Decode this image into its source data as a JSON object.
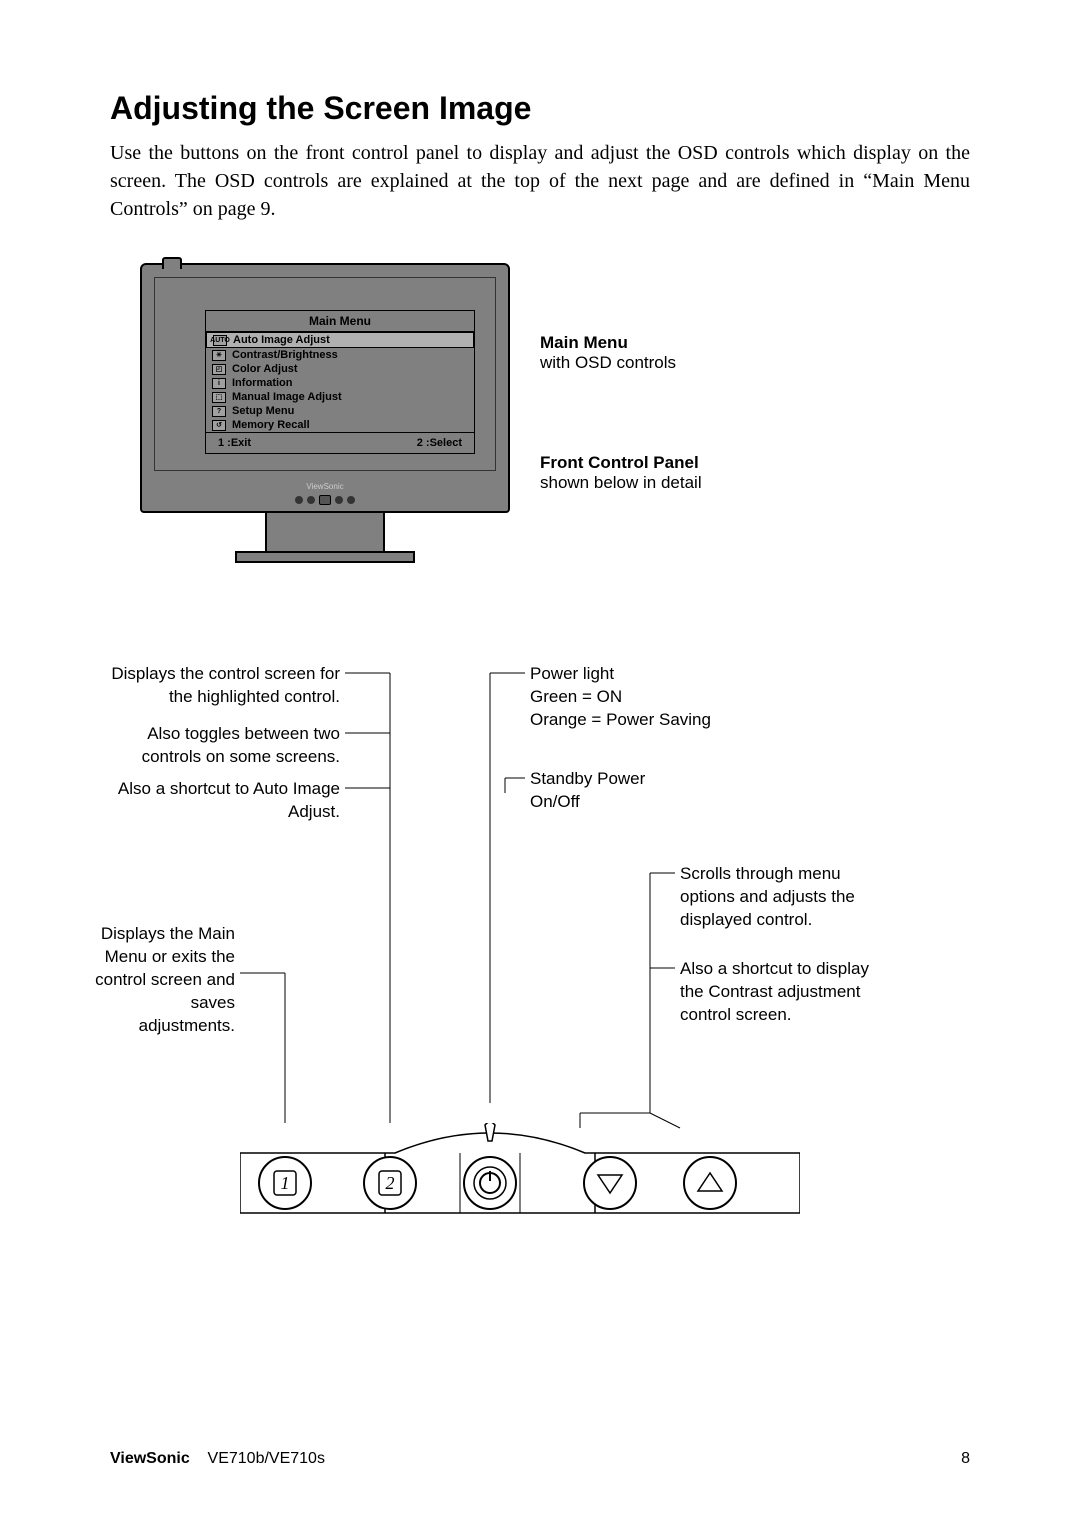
{
  "heading": "Adjusting the Screen Image",
  "intro": "Use the buttons on the front control panel to display and adjust the OSD controls which display on the screen. The OSD controls are explained at the top of the next page and are defined in “Main Menu Controls” on page 9.",
  "osd": {
    "title": "Main Menu",
    "items": [
      {
        "icon": "AUTO",
        "label": "Auto Image Adjust",
        "selected": true
      },
      {
        "icon": "☀",
        "label": "Contrast/Brightness",
        "selected": false
      },
      {
        "icon": "◰",
        "label": "Color Adjust",
        "selected": false
      },
      {
        "icon": "i",
        "label": "Information",
        "selected": false
      },
      {
        "icon": "⬚",
        "label": "Manual Image Adjust",
        "selected": false
      },
      {
        "icon": "?",
        "label": "Setup Menu",
        "selected": false
      },
      {
        "icon": "↺",
        "label": "Memory Recall",
        "selected": false
      }
    ],
    "footer_left": "1 :Exit",
    "footer_right": "2 :Select",
    "logo": "ViewSonic"
  },
  "side_labels": {
    "main_menu_title": "Main Menu",
    "main_menu_sub": "with OSD controls",
    "fcp_title": "Front Control Panel",
    "fcp_sub": "shown below in detail"
  },
  "callouts": {
    "left1": "Displays the control screen for the highlighted control.",
    "left2": "Also toggles between two controls on some screens.",
    "left3": "Also a shortcut to Auto Image Adjust.",
    "left4": "Displays the Main Menu or exits the control screen and saves adjustments.",
    "right1a": "Power light",
    "right1b": "Green = ON",
    "right1c": "Orange = Power Saving",
    "right2a": "Standby Power",
    "right2b": "On/Off",
    "right3": "Scrolls through menu options and adjusts the displayed control.",
    "right4": "Also a shortcut to display the Contrast adjustment control screen."
  },
  "buttons": {
    "b1": "1",
    "b2": "2"
  },
  "footer": {
    "brand": "ViewSonic",
    "model": "VE710b/VE710s",
    "pageno": "8"
  },
  "colors": {
    "monitor_gray": "#808080",
    "text": "#000000",
    "bg": "#ffffff"
  }
}
